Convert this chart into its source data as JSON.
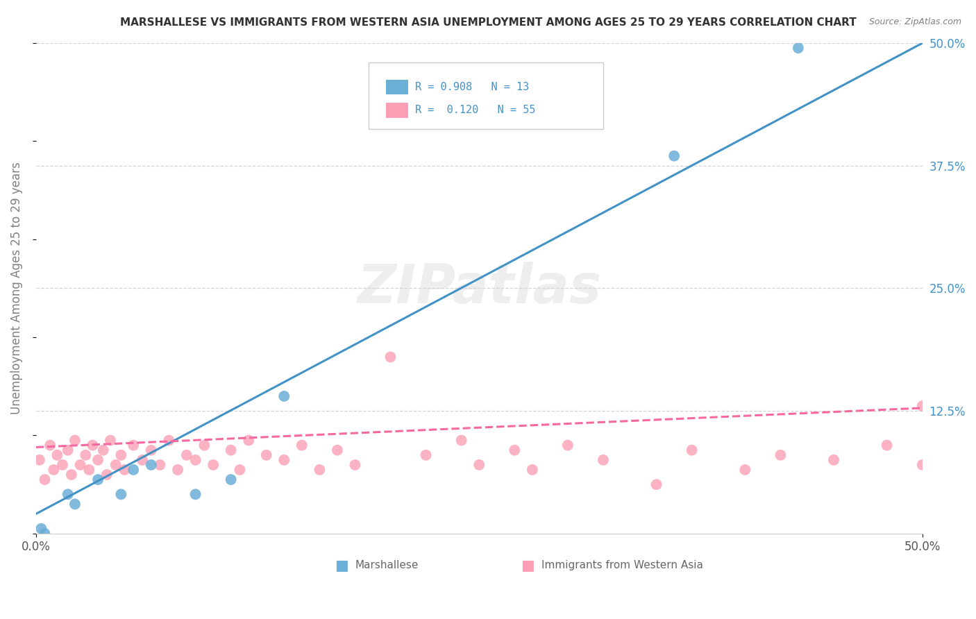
{
  "title": "MARSHALLESE VS IMMIGRANTS FROM WESTERN ASIA UNEMPLOYMENT AMONG AGES 25 TO 29 YEARS CORRELATION CHART",
  "source": "Source: ZipAtlas.com",
  "ylabel": "Unemployment Among Ages 25 to 29 years",
  "legend_labels_bottom": [
    "Marshallese",
    "Immigrants from Western Asia"
  ],
  "marshallese_R": "0.908",
  "marshallese_N": "13",
  "western_asia_R": "0.120",
  "western_asia_N": "55",
  "blue_color": "#6baed6",
  "pink_color": "#fa9fb5",
  "blue_line_color": "#4292c6",
  "pink_line_color": "#f768a1",
  "watermark": "ZIPatlas",
  "marshallese_x": [
    0.003,
    0.005,
    0.018,
    0.022,
    0.035,
    0.048,
    0.055,
    0.065,
    0.09,
    0.11,
    0.14,
    0.36,
    0.43
  ],
  "marshallese_y": [
    0.005,
    0.0,
    0.04,
    0.03,
    0.055,
    0.04,
    0.065,
    0.07,
    0.04,
    0.055,
    0.14,
    0.385,
    0.495
  ],
  "western_asia_x": [
    0.002,
    0.005,
    0.008,
    0.01,
    0.012,
    0.015,
    0.018,
    0.02,
    0.022,
    0.025,
    0.028,
    0.03,
    0.032,
    0.035,
    0.038,
    0.04,
    0.042,
    0.045,
    0.048,
    0.05,
    0.055,
    0.06,
    0.065,
    0.07,
    0.075,
    0.08,
    0.085,
    0.09,
    0.095,
    0.1,
    0.11,
    0.115,
    0.12,
    0.13,
    0.14,
    0.15,
    0.16,
    0.17,
    0.18,
    0.2,
    0.22,
    0.24,
    0.25,
    0.27,
    0.28,
    0.3,
    0.32,
    0.35,
    0.37,
    0.4,
    0.42,
    0.45,
    0.48,
    0.5,
    0.5
  ],
  "western_asia_y": [
    0.075,
    0.055,
    0.09,
    0.065,
    0.08,
    0.07,
    0.085,
    0.06,
    0.095,
    0.07,
    0.08,
    0.065,
    0.09,
    0.075,
    0.085,
    0.06,
    0.095,
    0.07,
    0.08,
    0.065,
    0.09,
    0.075,
    0.085,
    0.07,
    0.095,
    0.065,
    0.08,
    0.075,
    0.09,
    0.07,
    0.085,
    0.065,
    0.095,
    0.08,
    0.075,
    0.09,
    0.065,
    0.085,
    0.07,
    0.18,
    0.08,
    0.095,
    0.07,
    0.085,
    0.065,
    0.09,
    0.075,
    0.05,
    0.085,
    0.065,
    0.08,
    0.075,
    0.09,
    0.07,
    0.13
  ],
  "blue_line_x": [
    0.0,
    0.5
  ],
  "blue_line_y": [
    0.02,
    0.5
  ],
  "pink_line_x": [
    0.0,
    0.5
  ],
  "pink_line_y": [
    0.088,
    0.128
  ],
  "xlim": [
    0.0,
    0.5
  ],
  "ylim": [
    0.0,
    0.5
  ],
  "yticks": [
    0.0,
    0.125,
    0.25,
    0.375,
    0.5
  ],
  "ytick_labels": [
    "",
    "12.5%",
    "25.0%",
    "37.5%",
    "50.0%"
  ],
  "xticks": [
    0.0,
    0.5
  ],
  "xtick_labels": [
    "0.0%",
    "50.0%"
  ],
  "grid_lines": [
    0.125,
    0.25,
    0.375,
    0.5
  ]
}
